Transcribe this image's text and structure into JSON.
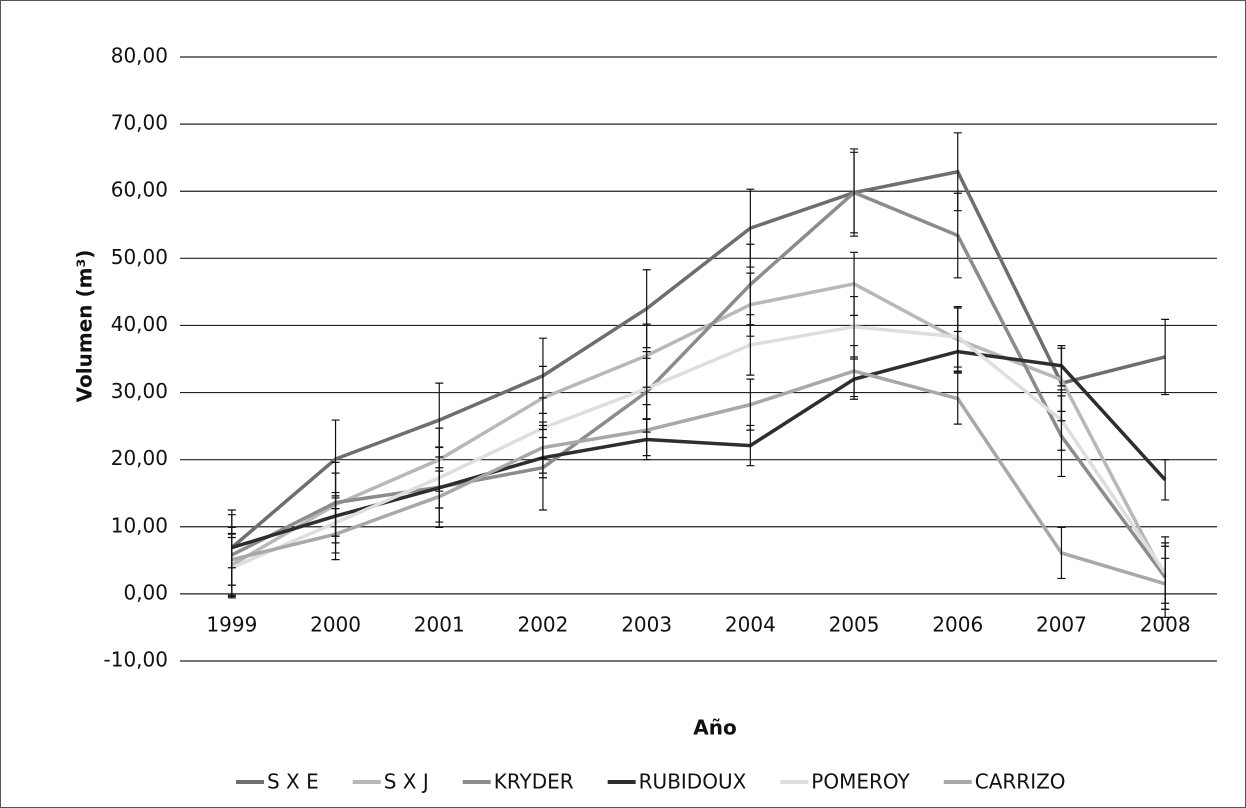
{
  "chart_data": {
    "type": "line",
    "x_label": "Año",
    "y_label": "Volumen (m³)",
    "categories": [
      "1999",
      "2000",
      "2001",
      "2002",
      "2003",
      "2004",
      "2005",
      "2006",
      "2007",
      "2008"
    ],
    "ylim": [
      -10,
      80
    ],
    "yticks": [
      {
        "value": -10,
        "label": "-10,00"
      },
      {
        "value": 0,
        "label": "0,00"
      },
      {
        "value": 10,
        "label": "10,00"
      },
      {
        "value": 20,
        "label": "20,00"
      },
      {
        "value": 30,
        "label": "30,00"
      },
      {
        "value": 40,
        "label": "40,00"
      },
      {
        "value": 50,
        "label": "50,00"
      },
      {
        "value": 60,
        "label": "60,00"
      },
      {
        "value": 70,
        "label": "70,00"
      },
      {
        "value": 80,
        "label": "80,00"
      }
    ],
    "grid": true,
    "legend": "bottom",
    "series": [
      {
        "name": "S X E",
        "color": "#6e6e6e",
        "values": [
          6.9,
          20.1,
          25.9,
          32.5,
          42.5,
          54.5,
          59.8,
          62.9,
          31.4,
          35.3
        ],
        "errors": [
          5.6,
          5.8,
          5.5,
          5.6,
          5.8,
          5.8,
          6.5,
          5.8,
          5.6,
          5.6
        ]
      },
      {
        "name": "S X J",
        "color": "#b8b8b8",
        "values": [
          4.3,
          13.3,
          20.0,
          29.2,
          35.5,
          43.1,
          46.2,
          37.9,
          31.9,
          2.4
        ],
        "errors": [
          4.7,
          4.7,
          4.7,
          4.7,
          4.7,
          4.7,
          4.7,
          4.7,
          4.7,
          4.7
        ]
      },
      {
        "name": "KRYDER",
        "color": "#8c8c8c",
        "values": [
          5.8,
          13.6,
          15.9,
          18.8,
          30.1,
          46.1,
          59.8,
          53.4,
          23.5,
          2.5
        ],
        "errors": [
          6.0,
          6.0,
          6.0,
          6.3,
          6.0,
          6.0,
          6.0,
          6.3,
          6.0,
          6.0
        ]
      },
      {
        "name": "RUBIDOUX",
        "color": "#2e2e2e",
        "values": [
          6.9,
          11.6,
          15.8,
          20.3,
          23.0,
          22.1,
          32.0,
          36.1,
          34.0,
          17.0
        ],
        "errors": [
          3.0,
          3.0,
          3.0,
          3.0,
          3.0,
          3.0,
          3.0,
          3.0,
          3.0,
          3.0
        ]
      },
      {
        "name": "POMEROY",
        "color": "#dedede",
        "values": [
          3.9,
          10.6,
          17.3,
          24.7,
          30.6,
          37.1,
          39.8,
          38.3,
          25.9,
          3.1
        ],
        "errors": [
          4.5,
          4.5,
          4.5,
          4.5,
          4.5,
          4.5,
          4.5,
          4.5,
          4.5,
          4.5
        ]
      },
      {
        "name": "CARRIZO",
        "color": "#a8a8a8",
        "values": [
          5.1,
          8.9,
          14.5,
          21.8,
          24.4,
          28.2,
          33.2,
          29.1,
          6.1,
          1.5
        ],
        "errors": [
          3.8,
          3.8,
          3.8,
          3.8,
          3.8,
          3.8,
          3.8,
          3.8,
          3.8,
          3.8
        ]
      }
    ]
  }
}
